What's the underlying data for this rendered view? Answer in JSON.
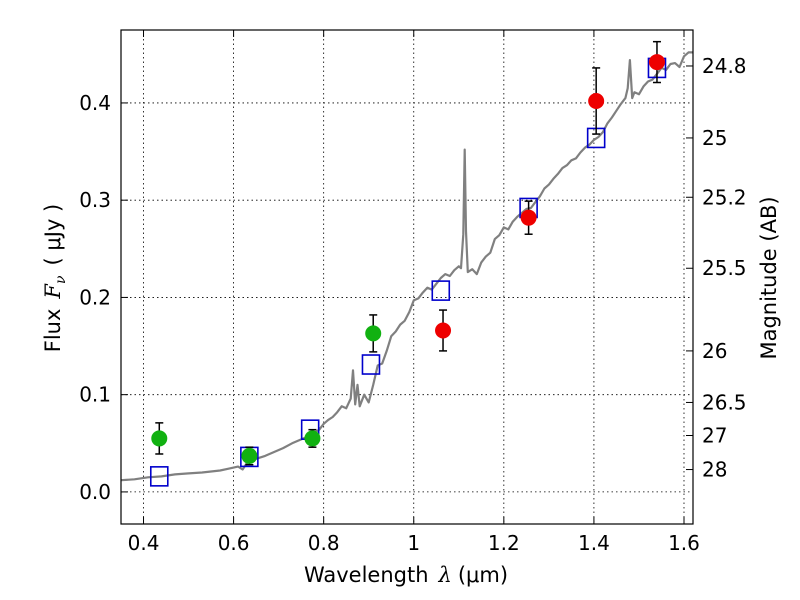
{
  "chart_data": {
    "type": "scatter",
    "xlabel": {
      "prefix": "Wavelength",
      "symbol": "λ",
      "unit": "(μm)"
    },
    "ylabel": {
      "prefix": "Flux",
      "symbol": "F",
      "sub": "ν",
      "unit": "( μJy )"
    },
    "y2label": "Magnitude (AB)",
    "xlim": [
      0.35,
      1.62
    ],
    "ylim": [
      -0.033,
      0.475
    ],
    "x_ticks": [
      0.4,
      0.6,
      0.8,
      1.0,
      1.2,
      1.4,
      1.6
    ],
    "x_tick_labels": [
      "0.4",
      "0.6",
      "0.8",
      "1",
      "1.2",
      "1.4",
      "1.6"
    ],
    "y_ticks": [
      0.0,
      0.1,
      0.2,
      0.3,
      0.4
    ],
    "y_tick_labels": [
      "0.0",
      "0.1",
      "0.2",
      "0.3",
      "0.4"
    ],
    "y2_ticks": [
      {
        "label": "24.8",
        "flux": 0.438
      },
      {
        "label": "25",
        "flux": 0.364
      },
      {
        "label": "25.2",
        "flux": 0.303
      },
      {
        "label": "25.5",
        "flux": 0.23
      },
      {
        "label": "26",
        "flux": 0.145
      },
      {
        "label": "26.5",
        "flux": 0.092
      },
      {
        "label": "27",
        "flux": 0.058
      },
      {
        "label": "28",
        "flux": 0.023
      }
    ],
    "grid": true,
    "colors": {
      "green": "#11b111",
      "red": "#ee0000",
      "blue": "#0000cc",
      "sed": "#808080"
    },
    "green_points": [
      {
        "x": 0.435,
        "y": 0.055,
        "err": 0.016
      },
      {
        "x": 0.635,
        "y": 0.037,
        "err": 0.009
      },
      {
        "x": 0.775,
        "y": 0.055,
        "err": 0.009
      },
      {
        "x": 0.91,
        "y": 0.163,
        "err": 0.019
      }
    ],
    "red_points": [
      {
        "x": 1.065,
        "y": 0.166,
        "err": 0.021
      },
      {
        "x": 1.255,
        "y": 0.282,
        "err": 0.017
      },
      {
        "x": 1.405,
        "y": 0.402,
        "err": 0.034
      },
      {
        "x": 1.54,
        "y": 0.442,
        "err": 0.021
      }
    ],
    "model_points": [
      {
        "x": 0.435,
        "y": 0.016
      },
      {
        "x": 0.635,
        "y": 0.036
      },
      {
        "x": 0.77,
        "y": 0.064
      },
      {
        "x": 0.905,
        "y": 0.131
      },
      {
        "x": 1.06,
        "y": 0.207
      },
      {
        "x": 1.255,
        "y": 0.292
      },
      {
        "x": 1.405,
        "y": 0.364
      },
      {
        "x": 1.54,
        "y": 0.436
      }
    ],
    "sed_curve": [
      [
        0.35,
        0.012
      ],
      [
        0.38,
        0.013
      ],
      [
        0.41,
        0.015
      ],
      [
        0.44,
        0.016
      ],
      [
        0.47,
        0.018
      ],
      [
        0.5,
        0.019
      ],
      [
        0.53,
        0.02
      ],
      [
        0.55,
        0.021
      ],
      [
        0.57,
        0.022
      ],
      [
        0.59,
        0.024
      ],
      [
        0.61,
        0.026
      ],
      [
        0.62,
        0.023
      ],
      [
        0.63,
        0.03
      ],
      [
        0.65,
        0.034
      ],
      [
        0.67,
        0.037
      ],
      [
        0.69,
        0.041
      ],
      [
        0.71,
        0.045
      ],
      [
        0.73,
        0.05
      ],
      [
        0.75,
        0.054
      ],
      [
        0.77,
        0.058
      ],
      [
        0.79,
        0.064
      ],
      [
        0.8,
        0.07
      ],
      [
        0.81,
        0.074
      ],
      [
        0.82,
        0.077
      ],
      [
        0.83,
        0.082
      ],
      [
        0.84,
        0.088
      ],
      [
        0.85,
        0.086
      ],
      [
        0.86,
        0.096
      ],
      [
        0.865,
        0.125
      ],
      [
        0.87,
        0.09
      ],
      [
        0.875,
        0.11
      ],
      [
        0.88,
        0.088
      ],
      [
        0.89,
        0.1
      ],
      [
        0.9,
        0.092
      ],
      [
        0.91,
        0.11
      ],
      [
        0.92,
        0.13
      ],
      [
        0.93,
        0.132
      ],
      [
        0.94,
        0.145
      ],
      [
        0.95,
        0.16
      ],
      [
        0.96,
        0.165
      ],
      [
        0.97,
        0.172
      ],
      [
        0.98,
        0.176
      ],
      [
        0.99,
        0.185
      ],
      [
        1.0,
        0.197
      ],
      [
        1.01,
        0.199
      ],
      [
        1.02,
        0.205
      ],
      [
        1.03,
        0.21
      ],
      [
        1.04,
        0.208
      ],
      [
        1.05,
        0.214
      ],
      [
        1.06,
        0.22
      ],
      [
        1.07,
        0.224
      ],
      [
        1.08,
        0.222
      ],
      [
        1.09,
        0.228
      ],
      [
        1.1,
        0.232
      ],
      [
        1.105,
        0.23
      ],
      [
        1.11,
        0.265
      ],
      [
        1.113,
        0.352
      ],
      [
        1.116,
        0.268
      ],
      [
        1.12,
        0.226
      ],
      [
        1.13,
        0.229
      ],
      [
        1.14,
        0.224
      ],
      [
        1.15,
        0.236
      ],
      [
        1.16,
        0.242
      ],
      [
        1.17,
        0.246
      ],
      [
        1.18,
        0.26
      ],
      [
        1.19,
        0.264
      ],
      [
        1.2,
        0.272
      ],
      [
        1.21,
        0.27
      ],
      [
        1.22,
        0.278
      ],
      [
        1.23,
        0.283
      ],
      [
        1.24,
        0.287
      ],
      [
        1.25,
        0.291
      ],
      [
        1.26,
        0.292
      ],
      [
        1.27,
        0.298
      ],
      [
        1.28,
        0.304
      ],
      [
        1.29,
        0.312
      ],
      [
        1.3,
        0.316
      ],
      [
        1.31,
        0.322
      ],
      [
        1.32,
        0.327
      ],
      [
        1.33,
        0.333
      ],
      [
        1.34,
        0.336
      ],
      [
        1.35,
        0.341
      ],
      [
        1.36,
        0.343
      ],
      [
        1.37,
        0.349
      ],
      [
        1.38,
        0.354
      ],
      [
        1.39,
        0.357
      ],
      [
        1.4,
        0.362
      ],
      [
        1.41,
        0.365
      ],
      [
        1.42,
        0.37
      ],
      [
        1.43,
        0.379
      ],
      [
        1.44,
        0.385
      ],
      [
        1.45,
        0.392
      ],
      [
        1.46,
        0.399
      ],
      [
        1.47,
        0.405
      ],
      [
        1.475,
        0.415
      ],
      [
        1.48,
        0.444
      ],
      [
        1.485,
        0.405
      ],
      [
        1.49,
        0.411
      ],
      [
        1.5,
        0.409
      ],
      [
        1.51,
        0.417
      ],
      [
        1.52,
        0.422
      ],
      [
        1.53,
        0.424
      ],
      [
        1.54,
        0.43
      ],
      [
        1.55,
        0.436
      ],
      [
        1.56,
        0.434
      ],
      [
        1.57,
        0.44
      ],
      [
        1.58,
        0.441
      ],
      [
        1.59,
        0.437
      ],
      [
        1.6,
        0.448
      ],
      [
        1.61,
        0.452
      ],
      [
        1.62,
        0.452
      ]
    ]
  }
}
